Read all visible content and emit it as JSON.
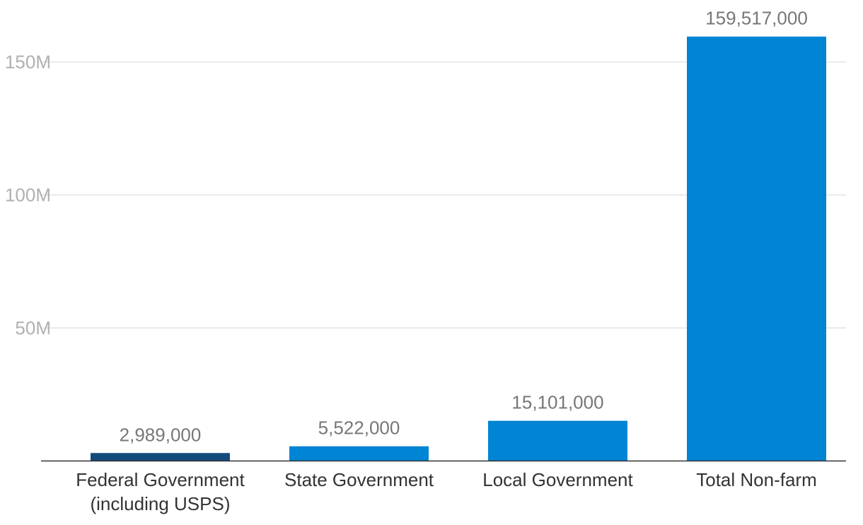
{
  "chart_data": {
    "type": "bar",
    "title": "",
    "xlabel": "",
    "ylabel": "",
    "categories": [
      [
        "Federal Government",
        "(including USPS)"
      ],
      [
        "State Government"
      ],
      [
        "Local Government"
      ],
      [
        "Total Non-farm"
      ]
    ],
    "values": [
      2989000,
      5522000,
      15101000,
      159517000
    ],
    "data_labels": [
      "2,989,000",
      "5,522,000",
      "15,101,000",
      "159,517,000"
    ],
    "ylim": [
      0,
      160000000
    ],
    "yticks": [
      50000000,
      100000000,
      150000000
    ],
    "ytick_labels": [
      "50M",
      "100M",
      "150M"
    ],
    "grid": true,
    "legend": "none",
    "colors": [
      "#134a7c",
      "#0084d4",
      "#0084d4",
      "#0084d4"
    ]
  }
}
